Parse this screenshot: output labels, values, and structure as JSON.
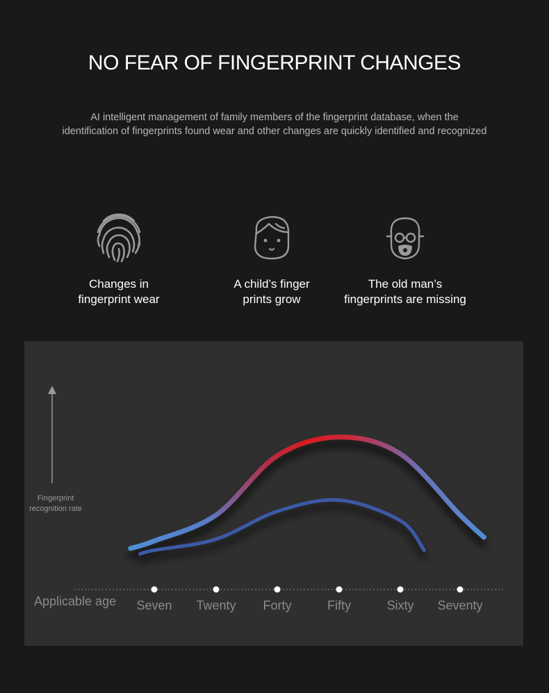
{
  "header": {
    "title": "NO FEAR OF FINGERPRINT CHANGES",
    "subtitle_line1": "AI intelligent management of family members of the fingerprint database, when the",
    "subtitle_line2": "identification of fingerprints found wear and other changes are quickly identified and recognized"
  },
  "features": [
    {
      "icon": "fingerprint-icon",
      "line1": "Changes in",
      "line2": "fingerprint wear"
    },
    {
      "icon": "child-face-icon",
      "line1": "A child’s finger",
      "line2": "prints grow"
    },
    {
      "icon": "old-man-face-icon",
      "line1": "The old man’s",
      "line2": "fingerprints are missing"
    }
  ],
  "chart_data": {
    "type": "line",
    "xlabel": "Applicable age",
    "ylabel_line1": "Fingerprint",
    "ylabel_line2": "recognition rate",
    "categories": [
      "Seven",
      "Twenty",
      "Forty",
      "Fifty",
      "Sixty",
      "Seventy"
    ],
    "y_axis_ticks": false,
    "grid": false,
    "series": [
      {
        "x": [
          2,
          7,
          20,
          40,
          50,
          60,
          70,
          74
        ],
        "values": [
          0.12,
          0.16,
          0.3,
          0.62,
          0.72,
          0.63,
          0.3,
          0.18
        ]
      },
      {
        "x": [
          4,
          7,
          20,
          40,
          50,
          60,
          64
        ],
        "values": [
          0.09,
          0.11,
          0.17,
          0.32,
          0.38,
          0.27,
          0.11
        ]
      }
    ],
    "colors": {
      "outer_ends": "#4f8fd6",
      "outer_peak": "#d81a1f",
      "inner": "#3a5aa6",
      "dots": "#ffffff",
      "axis": "#9a9a9a"
    }
  }
}
